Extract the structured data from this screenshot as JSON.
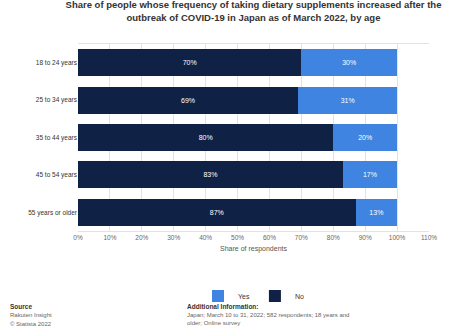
{
  "chart_data": {
    "type": "bar",
    "orientation": "horizontal",
    "stacked": true,
    "title": "Share of people whose frequency of taking dietary supplements increased after the outbreak of COVID-19 in Japan as of March 2022, by age",
    "x_label": "Share of respondents",
    "categories": [
      "18 to 24 years",
      "25 to 34 years",
      "35 to 44 years",
      "45 to 54 years",
      "55 years or older"
    ],
    "series": [
      {
        "name": "No",
        "color": "#0f2145",
        "values": [
          70,
          69,
          80,
          83,
          87
        ],
        "value_labels": [
          "70%",
          "69%",
          "80%",
          "83%",
          "87%"
        ]
      },
      {
        "name": "Yes",
        "color": "#3e84e0",
        "values": [
          30,
          31,
          20,
          17,
          13
        ],
        "value_labels": [
          "30%",
          "31%",
          "20%",
          "17%",
          "13%"
        ]
      }
    ],
    "xlim": [
      0,
      110
    ],
    "xticks": [
      {
        "value": 0,
        "label": "0%"
      },
      {
        "value": 10,
        "label": "10%"
      },
      {
        "value": 20,
        "label": "20%"
      },
      {
        "value": 30,
        "label": "30%"
      },
      {
        "value": 40,
        "label": "40%"
      },
      {
        "value": 50,
        "label": "50%"
      },
      {
        "value": 60,
        "label": "60%"
      },
      {
        "value": 70,
        "label": "70%"
      },
      {
        "value": 80,
        "label": "80%"
      },
      {
        "value": 90,
        "label": "90%"
      },
      {
        "value": 100,
        "label": "100%"
      },
      {
        "value": 110,
        "label": "110%"
      }
    ],
    "grid": true,
    "data_labels": true,
    "legend": "bottom",
    "footer": {
      "source_label": "Source",
      "source": "Rakuten Insight",
      "copyright": "© Statista 2022",
      "info_label": "Additional Information:",
      "info": "Japan; March 10 to 31, 2022; 582 respondents; 18 years and older; Online survey"
    }
  }
}
